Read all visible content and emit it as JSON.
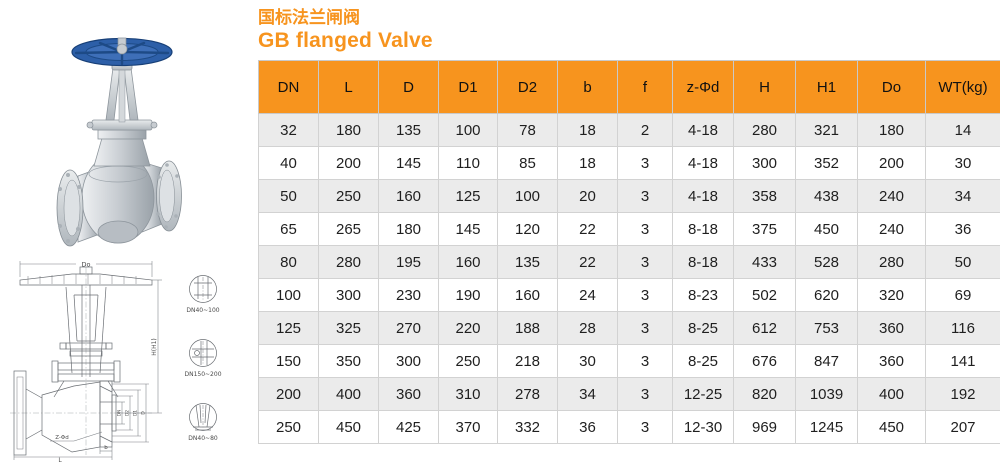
{
  "page": {
    "title_cn": "国标法兰闸阀",
    "title_en": "GB flanged Valve",
    "accent_color": "#F7941E",
    "row_stripe_color": "#EBEBEB"
  },
  "table": {
    "columns": [
      "DN",
      "L",
      "D",
      "D1",
      "D2",
      "b",
      "f",
      "z-Φd",
      "H",
      "H1",
      "Do",
      "WT(kg)"
    ],
    "rows": [
      [
        "32",
        "180",
        "135",
        "100",
        "78",
        "18",
        "2",
        "4-18",
        "280",
        "321",
        "180",
        "14"
      ],
      [
        "40",
        "200",
        "145",
        "110",
        "85",
        "18",
        "3",
        "4-18",
        "300",
        "352",
        "200",
        "30"
      ],
      [
        "50",
        "250",
        "160",
        "125",
        "100",
        "20",
        "3",
        "4-18",
        "358",
        "438",
        "240",
        "34"
      ],
      [
        "65",
        "265",
        "180",
        "145",
        "120",
        "22",
        "3",
        "8-18",
        "375",
        "450",
        "240",
        "36"
      ],
      [
        "80",
        "280",
        "195",
        "160",
        "135",
        "22",
        "3",
        "8-18",
        "433",
        "528",
        "280",
        "50"
      ],
      [
        "100",
        "300",
        "230",
        "190",
        "160",
        "24",
        "3",
        "8-23",
        "502",
        "620",
        "320",
        "69"
      ],
      [
        "125",
        "325",
        "270",
        "220",
        "188",
        "28",
        "3",
        "8-25",
        "612",
        "753",
        "360",
        "116"
      ],
      [
        "150",
        "350",
        "300",
        "250",
        "218",
        "30",
        "3",
        "8-25",
        "676",
        "847",
        "360",
        "141"
      ],
      [
        "200",
        "400",
        "360",
        "310",
        "278",
        "34",
        "3",
        "12-25",
        "820",
        "1039",
        "400",
        "192"
      ],
      [
        "250",
        "450",
        "425",
        "370",
        "332",
        "36",
        "3",
        "12-30",
        "969",
        "1245",
        "450",
        "207"
      ]
    ]
  },
  "drawing": {
    "dim_do": "Do",
    "dim_h": "H(H1)",
    "dim_dn": "DN",
    "dim_d2": "D2",
    "dim_d1": "D1",
    "dim_d": "D",
    "dim_z": "Z-Φd",
    "dim_l": "L",
    "dim_b": "b",
    "details": [
      {
        "label": "DN40~100"
      },
      {
        "label": "DN150~200"
      },
      {
        "label": "DN40~80"
      }
    ]
  }
}
